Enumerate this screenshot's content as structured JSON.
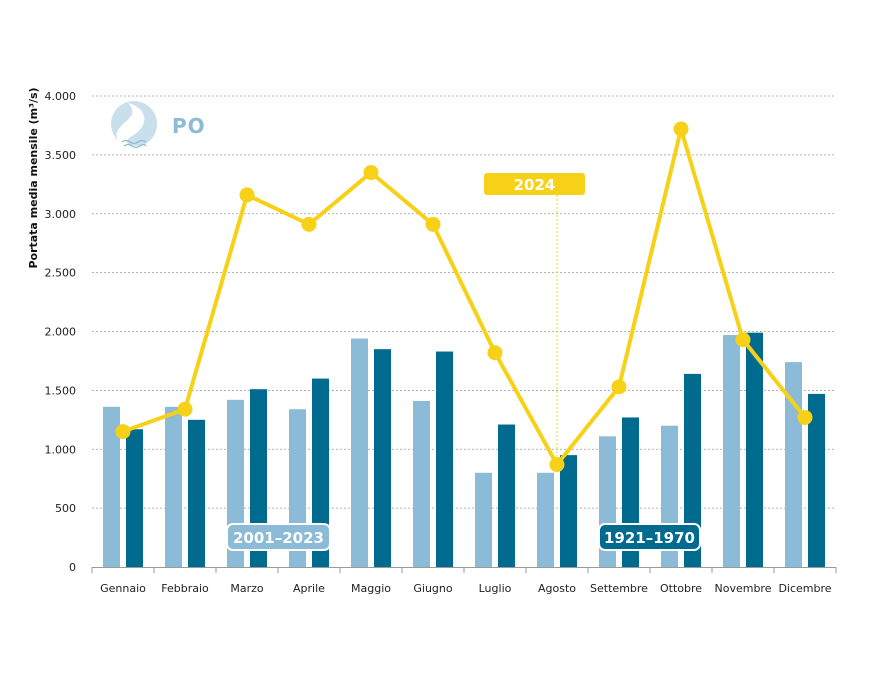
{
  "chart_data": {
    "type": "bar",
    "title": "PO",
    "ylabel": "Portata media mensile (m³/s)",
    "xlabel": "",
    "ylim": [
      0,
      4000
    ],
    "yticks": [
      0,
      500,
      1000,
      1500,
      2000,
      2500,
      3000,
      3500,
      4000
    ],
    "ytick_labels": [
      "0",
      "500",
      "1.000",
      "1.500",
      "2.000",
      "2.500",
      "3.000",
      "3.500",
      "4.000"
    ],
    "categories": [
      "Gennaio",
      "Febbraio",
      "Marzo",
      "Aprile",
      "Maggio",
      "Giugno",
      "Luglio",
      "Agosto",
      "Settembre",
      "Ottobre",
      "Novembre",
      "Dicembre"
    ],
    "series": [
      {
        "name": "2001–2023",
        "kind": "bar",
        "color": "#8bbbd6",
        "values": [
          1360,
          1360,
          1420,
          1340,
          1940,
          1410,
          800,
          800,
          1110,
          1200,
          1970,
          1740
        ]
      },
      {
        "name": "1921–1970",
        "kind": "bar",
        "color": "#006b8f",
        "values": [
          1170,
          1250,
          1510,
          1600,
          1850,
          1830,
          1210,
          950,
          1270,
          1640,
          1990,
          1470
        ]
      },
      {
        "name": "2024",
        "kind": "line",
        "color": "#f7d117",
        "values": [
          1150,
          1340,
          3160,
          2910,
          3350,
          2910,
          1820,
          870,
          1530,
          3720,
          1930,
          1270
        ]
      }
    ],
    "legend_labels": {
      "series_2024": "2024",
      "series_2001": "2001–2023",
      "series_1921": "1921–1970"
    },
    "grid": true
  }
}
